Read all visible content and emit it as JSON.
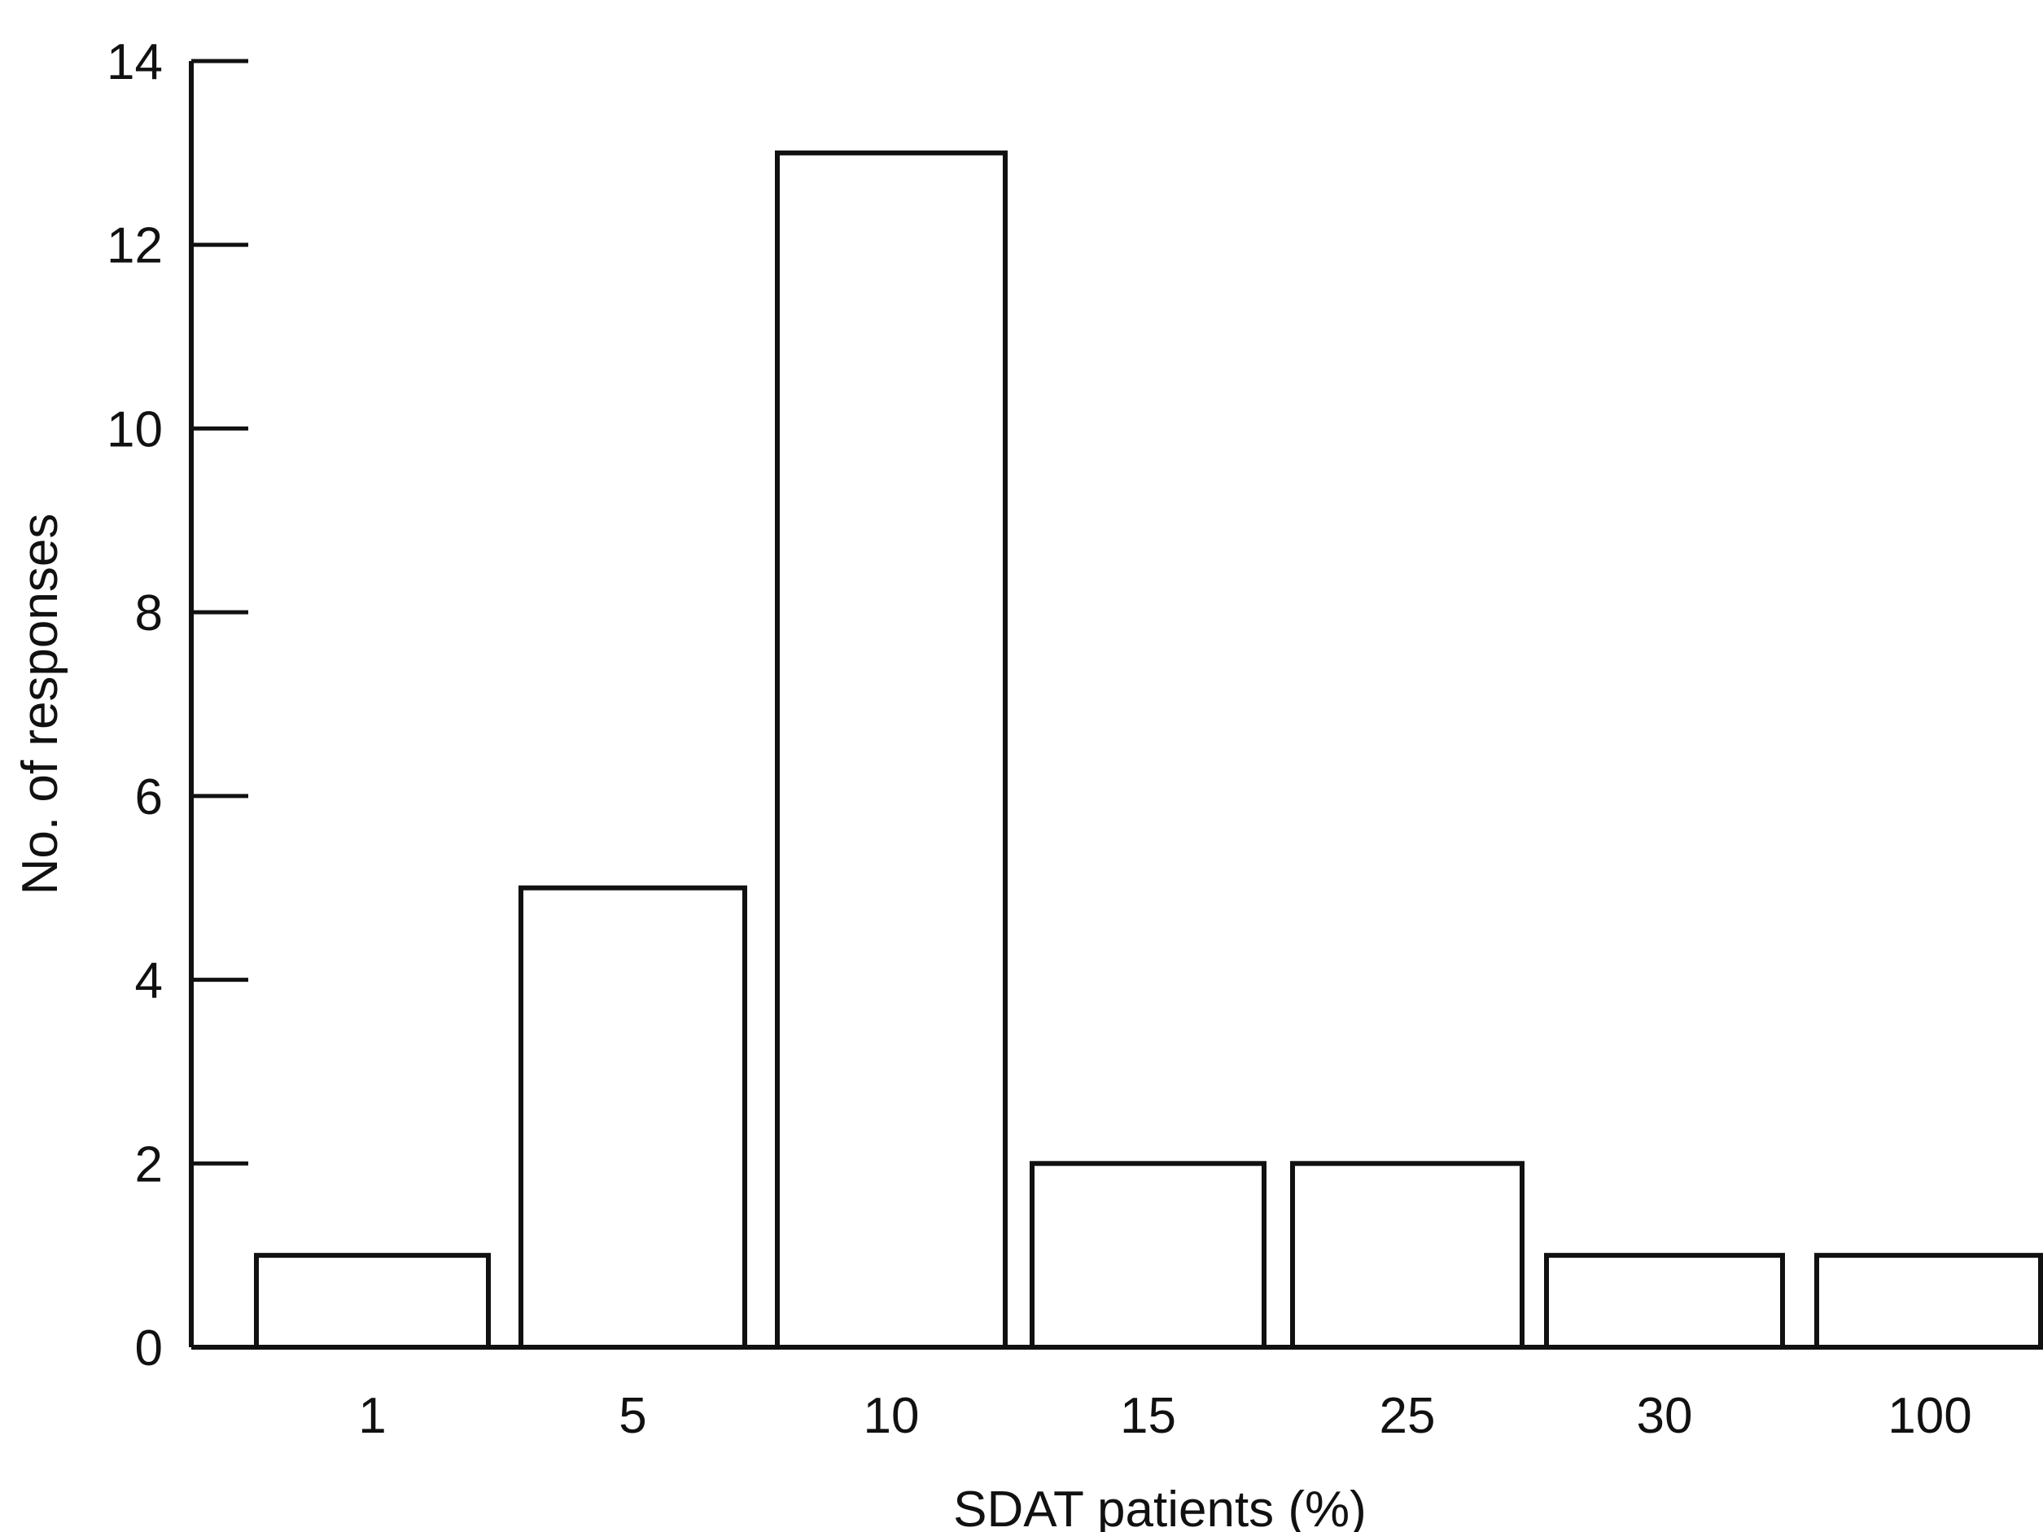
{
  "chart_data": {
    "type": "bar",
    "title": "",
    "xlabel": "SDAT patients (%)",
    "ylabel": "No. of responses",
    "categories": [
      "1",
      "5",
      "10",
      "15",
      "25",
      "30",
      "100"
    ],
    "values": [
      1,
      5,
      13,
      2,
      2,
      1,
      1
    ],
    "ylim": [
      0,
      14
    ],
    "yticks": [
      "0",
      "2",
      "4",
      "6",
      "8",
      "10",
      "12",
      "14"
    ],
    "grid": false,
    "legend": "none",
    "colors": {
      "bar_fill": "#ffffff",
      "bar_stroke": "#111111",
      "axis": "#111111"
    }
  }
}
